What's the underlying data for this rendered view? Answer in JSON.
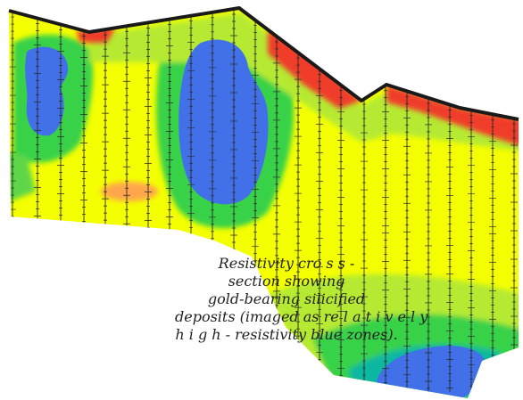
{
  "figure": {
    "caption_lines": [
      "Resistivity cro s s -",
      "section showing",
      "gold-bearing silicified",
      "deposits (imaged as re l a t i v e l y",
      "h i g h - resistivity blue zones)."
    ]
  },
  "colors": {
    "background": "#ffffff",
    "low_resistivity": "#f4ff00",
    "light_green": "#b6ea30",
    "green": "#37d24a",
    "teal": "#11b8a0",
    "high_resistivity_blue": "#4170e8",
    "surface_red": "#f03c2a",
    "orange": "#ffa64d",
    "topography_line": "#1a1a1a",
    "borehole_line": "#2a2a2a"
  }
}
